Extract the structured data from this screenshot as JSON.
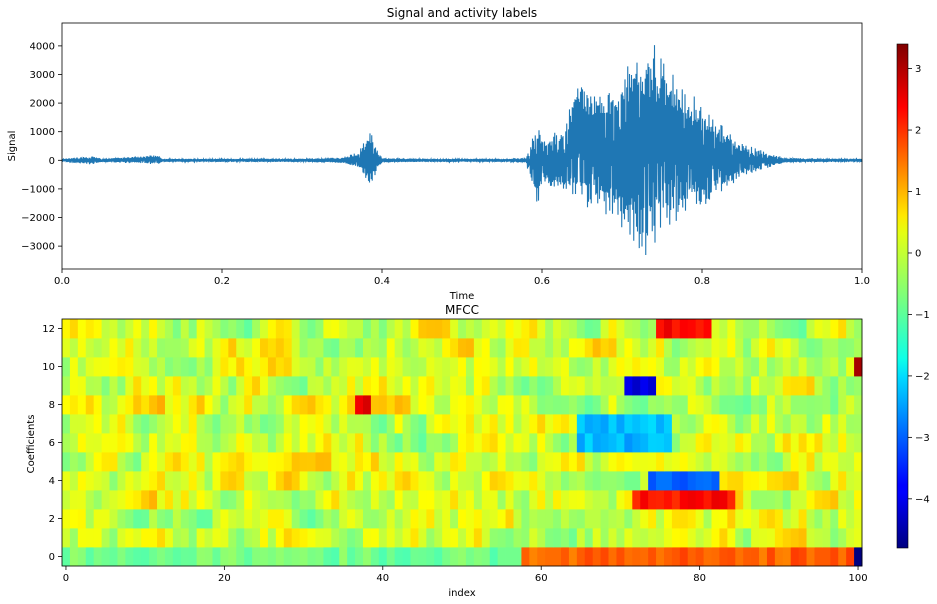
{
  "chart_data": [
    {
      "type": "line",
      "title": "Signal and activity labels",
      "xlabel": "Time",
      "ylabel": "Signal",
      "xlim": [
        0.0,
        1.0
      ],
      "ylim": [
        -3800,
        4800
      ],
      "xticks": [
        "0.0",
        "0.2",
        "0.4",
        "0.6",
        "0.8",
        "1.0"
      ],
      "yticks": [
        "−3000",
        "−2000",
        "−1000",
        "0",
        "1000",
        "2000",
        "3000",
        "4000"
      ],
      "line_color": "#1f77b4",
      "series": [
        {
          "x": [
            0.0,
            0.04,
            0.05,
            0.12,
            0.125,
            0.2,
            0.3,
            0.35,
            0.37,
            0.38,
            0.385,
            0.39,
            0.4,
            0.45,
            0.5,
            0.55,
            0.58,
            0.595,
            0.6,
            0.61,
            0.62,
            0.63,
            0.64,
            0.65,
            0.66,
            0.68,
            0.7,
            0.71,
            0.72,
            0.73,
            0.74,
            0.75,
            0.76,
            0.78,
            0.8,
            0.82,
            0.85,
            0.9,
            0.95,
            1.0
          ],
          "peak_high": [
            60,
            150,
            60,
            200,
            60,
            60,
            60,
            100,
            300,
            800,
            1200,
            600,
            80,
            60,
            60,
            60,
            100,
            1400,
            700,
            900,
            1100,
            1400,
            2800,
            3000,
            2600,
            2500,
            3000,
            3500,
            4000,
            4450,
            4300,
            3500,
            3200,
            2600,
            1900,
            1400,
            600,
            100,
            60,
            60
          ],
          "peak_low": [
            -60,
            -150,
            -60,
            -150,
            -60,
            -60,
            -60,
            -100,
            -300,
            -700,
            -1100,
            -600,
            -80,
            -60,
            -60,
            -60,
            -100,
            -1750,
            -800,
            -1000,
            -1100,
            -1300,
            -1600,
            -1700,
            -1800,
            -1900,
            -2500,
            -2800,
            -3200,
            -3500,
            -3000,
            -2600,
            -2300,
            -2000,
            -1700,
            -1300,
            -600,
            -100,
            -60,
            -60
          ]
        }
      ]
    },
    {
      "type": "heatmap",
      "title": "MFCC",
      "xlabel": "index",
      "ylabel": "Coefficients",
      "xlim": [
        -0.5,
        100.5
      ],
      "ylim": [
        -0.5,
        12.5
      ],
      "xticks": [
        "0",
        "20",
        "40",
        "60",
        "80",
        "100"
      ],
      "yticks": [
        "0",
        "2",
        "4",
        "6",
        "8",
        "10",
        "12"
      ],
      "colormap": "jet",
      "color_range": [
        -4.8,
        3.4
      ],
      "colorbar_ticks": [
        "3",
        "2",
        "1",
        "0",
        "−1",
        "−2",
        "−3",
        "−4"
      ],
      "n_columns": 101,
      "n_rows": 13,
      "regions": [
        {
          "rows": [
            0,
            0
          ],
          "cols": [
            0,
            57
          ],
          "value": -0.8
        },
        {
          "rows": [
            0,
            0
          ],
          "cols": [
            58,
            99
          ],
          "value": 1.6
        },
        {
          "rows": [
            0,
            0
          ],
          "cols": [
            100,
            100
          ],
          "value": -4.6
        },
        {
          "rows": [
            3,
            3
          ],
          "cols": [
            72,
            84
          ],
          "value": 2.3
        },
        {
          "rows": [
            4,
            4
          ],
          "cols": [
            74,
            82
          ],
          "value": -3.0
        },
        {
          "rows": [
            6,
            7
          ],
          "cols": [
            65,
            76
          ],
          "value": -2.3
        },
        {
          "rows": [
            9,
            9
          ],
          "cols": [
            71,
            74
          ],
          "value": -4.0
        },
        {
          "rows": [
            12,
            12
          ],
          "cols": [
            75,
            81
          ],
          "value": 2.4
        },
        {
          "rows": [
            10,
            10
          ],
          "cols": [
            100,
            100
          ],
          "value": 3.2
        },
        {
          "rows": [
            8,
            8
          ],
          "cols": [
            37,
            38
          ],
          "value": 2.6
        }
      ]
    }
  ]
}
